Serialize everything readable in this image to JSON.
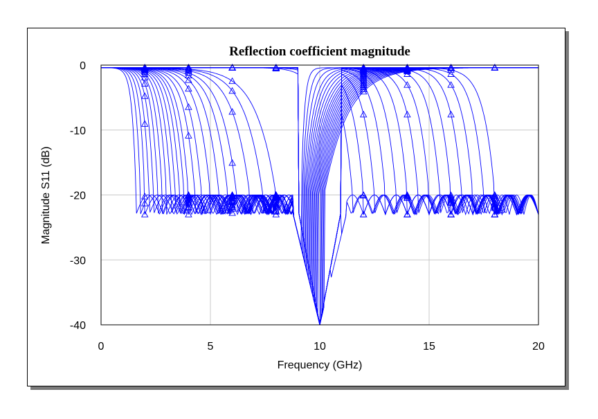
{
  "chart_data": {
    "type": "line",
    "title": "Reflection coefficient magnitude",
    "xlabel": "Frequency (GHz)",
    "ylabel": "Magnitude S11 (dB)",
    "xlim": [
      0,
      20
    ],
    "ylim": [
      -40,
      0
    ],
    "x_ticks": [
      "0",
      "5",
      "10",
      "15",
      "20"
    ],
    "y_ticks": [
      "0",
      "-10",
      "-20",
      "-30",
      "-40"
    ],
    "grid": true,
    "line_color": "#0000ff",
    "marker": "triangle",
    "marker_x_positions_ghz": [
      2,
      4,
      6,
      8,
      12,
      14,
      16,
      18
    ],
    "series_parameters": {
      "low_band_lower_edges_ghz": [
        1.6,
        1.8,
        2.0,
        2.2,
        2.4,
        2.6,
        2.8,
        3.0,
        3.2,
        3.4,
        3.6,
        3.8,
        4.0,
        4.3,
        4.6,
        5.0,
        5.4,
        5.8,
        6.2,
        6.8,
        7.4,
        8.0
      ],
      "common_null_ghz": 10,
      "high_band_lower_edges_ghz": [
        10.5,
        11.0,
        11.5,
        12.0,
        12.5,
        13.0,
        13.5,
        14.0,
        14.5,
        15.0,
        15.5,
        16.0,
        16.5,
        17.0,
        17.5,
        18.0
      ],
      "high_band_upper_edge_ghz": 20,
      "ripple_floor_db": -20,
      "null_depth_db": -40
    }
  }
}
